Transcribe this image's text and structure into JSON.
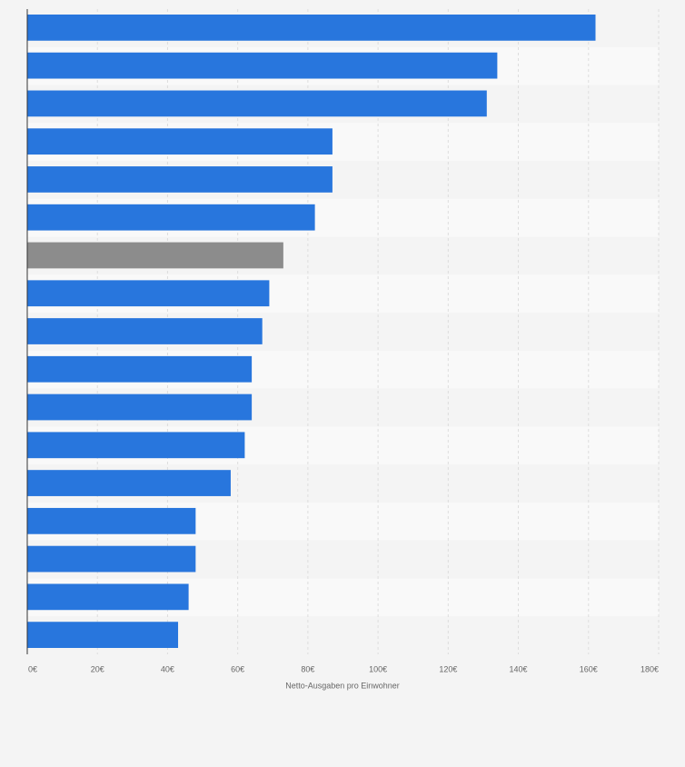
{
  "chart_data": {
    "type": "hbar",
    "xlabel": "Netto-Ausgaben pro Einwohner",
    "categories": [
      null,
      null,
      null,
      null,
      null,
      null,
      null,
      null,
      null,
      null,
      null,
      null,
      null,
      null,
      null,
      null,
      null
    ],
    "values": [
      162,
      134,
      131,
      87,
      87,
      82,
      73,
      69,
      67,
      64,
      64,
      62,
      58,
      48,
      48,
      46,
      43
    ],
    "colors": [
      "#2876dd",
      "#2876dd",
      "#2876dd",
      "#2876dd",
      "#2876dd",
      "#2876dd",
      "#8c8c8c",
      "#2876dd",
      "#2876dd",
      "#2876dd",
      "#2876dd",
      "#2876dd",
      "#2876dd",
      "#2876dd",
      "#2876dd",
      "#2876dd",
      "#2876dd"
    ],
    "xlim": [
      0,
      180
    ],
    "xticks": [
      {
        "value": 0,
        "label": "0€"
      },
      {
        "value": 20,
        "label": "20€"
      },
      {
        "value": 40,
        "label": "40€"
      },
      {
        "value": 60,
        "label": "60€"
      },
      {
        "value": 80,
        "label": "80€"
      },
      {
        "value": 100,
        "label": "100€"
      },
      {
        "value": 120,
        "label": "120€"
      },
      {
        "value": 140,
        "label": "140€"
      },
      {
        "value": 160,
        "label": "160€"
      },
      {
        "value": 180,
        "label": "180€"
      }
    ],
    "grid": true
  }
}
